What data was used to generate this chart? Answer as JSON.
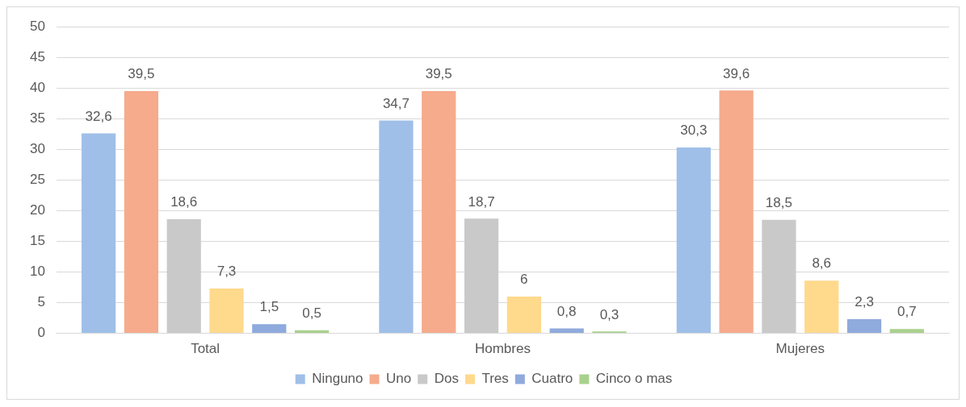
{
  "chart_data": {
    "type": "bar",
    "categories": [
      "Total",
      "Hombres",
      "Mujeres"
    ],
    "series": [
      {
        "name": "Ninguno",
        "color": "#9fbfe8",
        "values": [
          32.6,
          34.7,
          30.3
        ],
        "value_labels": [
          "32,6",
          "34,7",
          "30,3"
        ]
      },
      {
        "name": "Uno",
        "color": "#f5ab8c",
        "values": [
          39.5,
          39.5,
          39.6
        ],
        "value_labels": [
          "39,5",
          "39,5",
          "39,6"
        ]
      },
      {
        "name": "Dos",
        "color": "#c9c9c9",
        "values": [
          18.6,
          18.7,
          18.5
        ],
        "value_labels": [
          "18,6",
          "18,7",
          "18,5"
        ]
      },
      {
        "name": "Tres",
        "color": "#ffd98c",
        "values": [
          7.3,
          6,
          8.6
        ],
        "value_labels": [
          "7,3",
          "6",
          "8,6"
        ]
      },
      {
        "name": "Cuatro",
        "color": "#8faadc",
        "values": [
          1.5,
          0.8,
          2.3
        ],
        "value_labels": [
          "1,5",
          "0,8",
          "2,3"
        ]
      },
      {
        "name": "Cinco o mas",
        "color": "#a9d18e",
        "values": [
          0.5,
          0.3,
          0.7
        ],
        "value_labels": [
          "0,5",
          "0,3",
          "0,7"
        ]
      }
    ],
    "ylim": [
      0,
      50
    ],
    "yticks": [
      0,
      5,
      10,
      15,
      20,
      25,
      30,
      35,
      40,
      45,
      50
    ],
    "grid": "y",
    "legend": "bottom"
  }
}
